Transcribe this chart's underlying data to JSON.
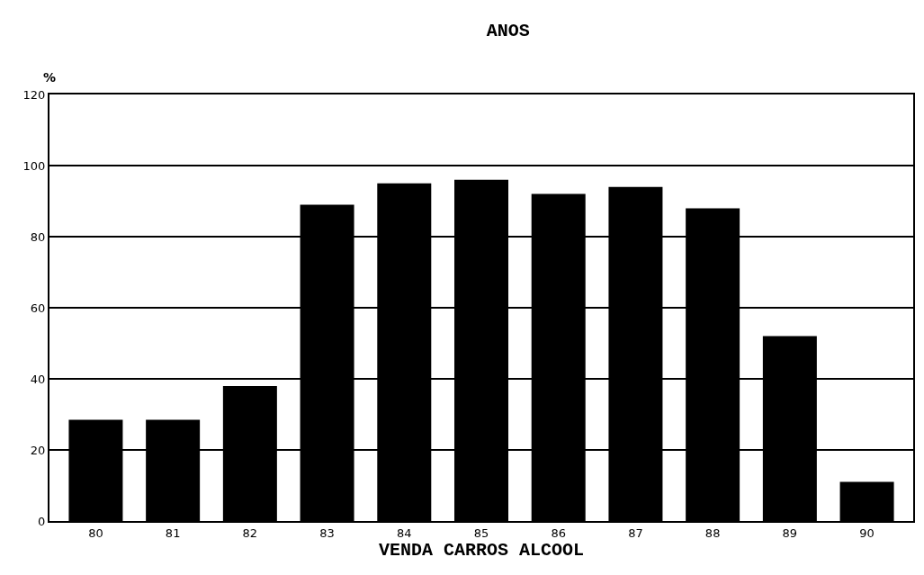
{
  "chart_data": {
    "type": "bar",
    "title": "ANOS",
    "xlabel": "VENDA CARROS ALCOOL",
    "ylabel": "%",
    "categories": [
      "80",
      "81",
      "82",
      "83",
      "84",
      "85",
      "86",
      "87",
      "88",
      "89",
      "90"
    ],
    "values": [
      28.5,
      28.5,
      38,
      89,
      95,
      96,
      92,
      94,
      88,
      52,
      11
    ],
    "color": "#000000",
    "ylim": [
      0,
      120
    ],
    "yticks": [
      0,
      20,
      40,
      60,
      80,
      100,
      120
    ],
    "grid": "y",
    "legend": false
  }
}
